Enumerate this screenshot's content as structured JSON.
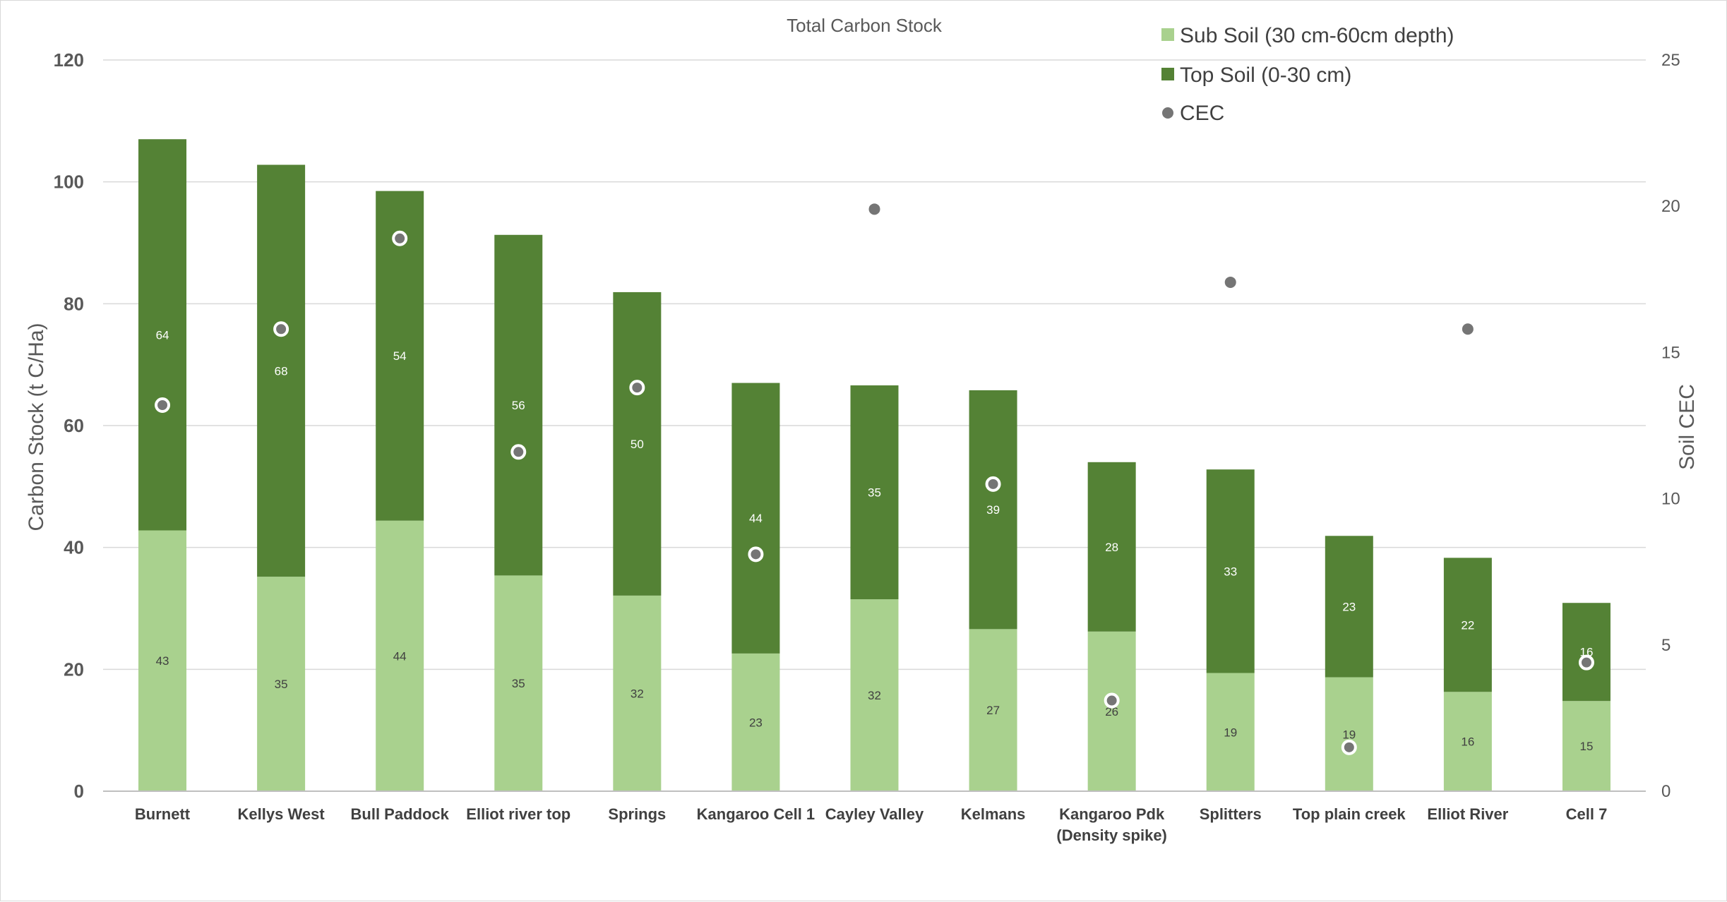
{
  "chart_data": {
    "type": "bar",
    "stacked": true,
    "title": "Total Carbon Stock",
    "ylabel": "Carbon Stock (t C/Ha)",
    "y2label": "Soil CEC",
    "ylim": [
      0,
      120
    ],
    "y2lim": [
      0,
      25
    ],
    "yticks": [
      "0",
      "20",
      "40",
      "60",
      "80",
      "100",
      "120"
    ],
    "y2ticks": [
      "0",
      "5",
      "10",
      "15",
      "20",
      "25"
    ],
    "categories": [
      [
        "Burnett"
      ],
      [
        "Kellys West"
      ],
      [
        "Bull Paddock"
      ],
      [
        "Elliot river top"
      ],
      [
        "Springs"
      ],
      [
        "Kangaroo Cell 1"
      ],
      [
        "Cayley Valley"
      ],
      [
        "Kelmans"
      ],
      [
        "Kangaroo Pdk",
        "(Density spike)"
      ],
      [
        "Splitters"
      ],
      [
        "Top plain creek"
      ],
      [
        "Elliot River"
      ],
      [
        "Cell 7"
      ]
    ],
    "series": [
      {
        "name": "Sub Soil (30 cm-60cm depth)",
        "color": "#a9d18e",
        "values": [
          42.8,
          35.2,
          44.4,
          35.4,
          32.1,
          22.6,
          31.5,
          26.6,
          26.2,
          19.4,
          18.7,
          16.3,
          14.8
        ],
        "labels": [
          "43",
          "35",
          "44",
          "35",
          "32",
          "23",
          "32",
          "27",
          "26",
          "19",
          "19",
          "16",
          "15"
        ]
      },
      {
        "name": "Top Soil (0-30 cm)",
        "color": "#548235",
        "values": [
          64.2,
          67.6,
          54.1,
          55.9,
          49.8,
          44.4,
          35.1,
          39.2,
          27.8,
          33.4,
          23.2,
          22.0,
          16.1
        ],
        "labels": [
          "64",
          "68",
          "54",
          "56",
          "50",
          "44",
          "35",
          "39",
          "28",
          "33",
          "23",
          "22",
          "16"
        ]
      },
      {
        "name": "CEC",
        "color": "#757575",
        "axis": "secondary",
        "values": [
          13.2,
          15.8,
          18.9,
          11.6,
          13.8,
          8.1,
          19.9,
          10.5,
          3.1,
          17.4,
          1.5,
          15.8,
          4.4
        ],
        "marker_styles": [
          "ringed",
          "ringed",
          "ringed",
          "ringed",
          "ringed",
          "ringed",
          "plain",
          "ringed",
          "ringed",
          "plain",
          "ringed",
          "plain",
          "ringed"
        ]
      }
    ],
    "legend_position": "top-right",
    "gridlines": true
  }
}
